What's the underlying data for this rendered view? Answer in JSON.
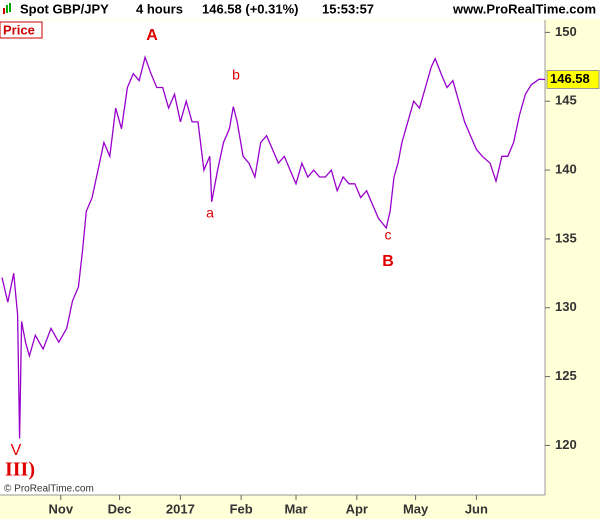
{
  "header": {
    "symbol": "Spot GBP/JPY",
    "period": "4 hours",
    "quote": "146.58 (+0.31%)",
    "time": "15:53:57",
    "site": "www.ProRealTime.com"
  },
  "panel_label": "Price",
  "copyright": "© ProRealTime.com",
  "chart_data": {
    "type": "line",
    "x": [
      1,
      4,
      7,
      9,
      10,
      11,
      13,
      15,
      18,
      22,
      26,
      30,
      34,
      37,
      40,
      42,
      44,
      47,
      50,
      53,
      56,
      59,
      62,
      65,
      68,
      71,
      74,
      77,
      80,
      83,
      86,
      89,
      92,
      95,
      98,
      101,
      104,
      107,
      108,
      111,
      114,
      117,
      119,
      121,
      124,
      127,
      130,
      133,
      136,
      139,
      142,
      145,
      148,
      151,
      154,
      157,
      160,
      163,
      166,
      169,
      172,
      175,
      178,
      181,
      184,
      187,
      190,
      193,
      197,
      199,
      201,
      203,
      205,
      208,
      211,
      214,
      217,
      220,
      222,
      225,
      228,
      231,
      234,
      237,
      240,
      243,
      246,
      250,
      253,
      256,
      259,
      262,
      265,
      268,
      271,
      275,
      278
    ],
    "series": [
      {
        "name": "Spot GBP/JPY",
        "color": "#9900cc",
        "values": [
          132.2,
          130.4,
          132.5,
          129.5,
          120.5,
          129,
          127.5,
          126.5,
          128,
          127,
          128.5,
          127.5,
          128.5,
          130.5,
          131.5,
          134,
          137,
          138,
          140,
          142,
          141,
          144.5,
          143,
          146,
          147,
          146.5,
          148.2,
          147,
          146,
          146,
          144.5,
          145.5,
          143.5,
          145,
          143.5,
          143.5,
          140,
          141,
          137.7,
          140,
          142,
          143,
          144.6,
          143.5,
          141,
          140.5,
          139.5,
          142,
          142.5,
          141.5,
          140.5,
          141,
          140,
          139,
          140.5,
          139.5,
          140,
          139.5,
          139.5,
          140,
          138.5,
          139.5,
          139,
          139,
          138,
          138.5,
          137.5,
          136.5,
          135.8,
          137,
          139.5,
          140.5,
          142,
          143.5,
          145,
          144.5,
          146,
          147.5,
          148.1,
          147,
          146,
          146.5,
          145,
          143.5,
          142.5,
          141.5,
          141,
          140.5,
          139.2,
          141,
          141,
          142,
          144,
          145.5,
          146.2,
          146.6,
          146.58
        ]
      }
    ],
    "xlim": [
      0,
      278
    ],
    "xticks": [
      {
        "value": 31,
        "label": "Nov"
      },
      {
        "value": 61,
        "label": "Dec"
      },
      {
        "value": 92,
        "label": "2017"
      },
      {
        "value": 123,
        "label": "Feb"
      },
      {
        "value": 151,
        "label": "Mar"
      },
      {
        "value": 182,
        "label": "Apr"
      },
      {
        "value": 212,
        "label": "May"
      },
      {
        "value": 243,
        "label": "Jun"
      }
    ],
    "ylim": [
      116.4,
      150.9
    ],
    "yticks": [
      120,
      125,
      130,
      135,
      140,
      145,
      150
    ],
    "grid": false,
    "annotations": [
      "A",
      "a",
      "b",
      "c",
      "B",
      "V",
      "III)"
    ]
  }
}
